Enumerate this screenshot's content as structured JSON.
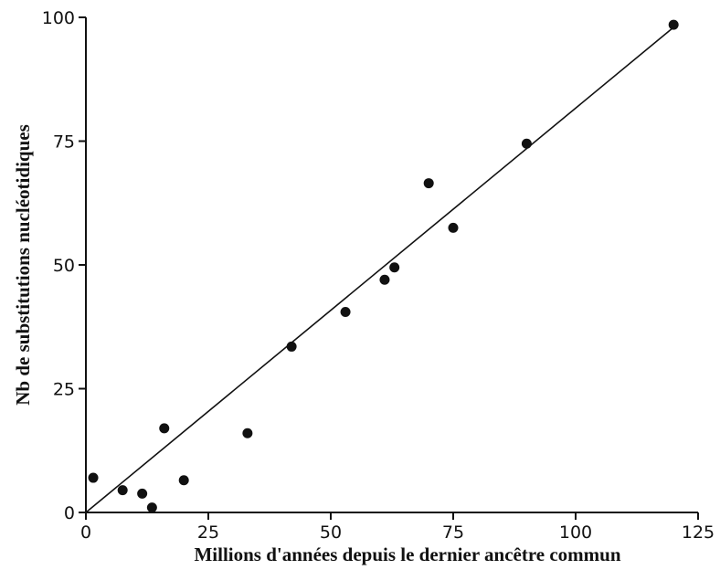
{
  "chart_data": {
    "type": "scatter",
    "xlabel": "Millions d'années depuis le dernier ancêtre commun",
    "ylabel": "Nb de substitutions nucléotidiques",
    "xlim": [
      0,
      125
    ],
    "ylim": [
      0,
      100
    ],
    "x_ticks": [
      0,
      25,
      50,
      75,
      100,
      125
    ],
    "y_ticks": [
      0,
      25,
      50,
      75,
      100
    ],
    "grid": false,
    "legend": "none",
    "points": [
      {
        "x": 1.5,
        "y": 7
      },
      {
        "x": 7.5,
        "y": 4.5
      },
      {
        "x": 11.5,
        "y": 3.8
      },
      {
        "x": 13.5,
        "y": 1
      },
      {
        "x": 16,
        "y": 17
      },
      {
        "x": 20,
        "y": 6.5
      },
      {
        "x": 33,
        "y": 16
      },
      {
        "x": 42,
        "y": 33.5
      },
      {
        "x": 53,
        "y": 40.5
      },
      {
        "x": 61,
        "y": 47
      },
      {
        "x": 63,
        "y": 49.5
      },
      {
        "x": 70,
        "y": 66.5
      },
      {
        "x": 75,
        "y": 57.5
      },
      {
        "x": 90,
        "y": 74.5
      },
      {
        "x": 120,
        "y": 98.5
      }
    ],
    "trendline": {
      "x": [
        0,
        120
      ],
      "y": [
        0,
        98
      ]
    }
  }
}
